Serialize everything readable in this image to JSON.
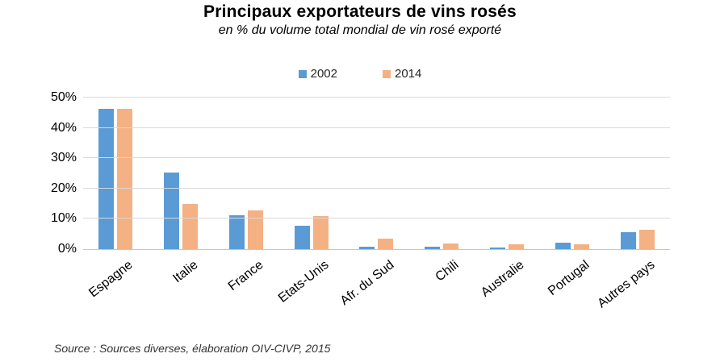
{
  "chart_data": {
    "type": "bar",
    "title": "Principaux exportateurs de vins rosés",
    "subtitle": "en % du volume total mondial de vin rosé exporté",
    "categories": [
      "Espagne",
      "Italie",
      "France",
      "Etats-Unis",
      "Afr. du Sud",
      "Chili",
      "Australie",
      "Portugal",
      "Autres pays"
    ],
    "series": [
      {
        "name": "2002",
        "color": "#5B9BD5",
        "values": [
          46.2,
          25.4,
          11.3,
          7.7,
          0.7,
          0.7,
          0.5,
          2.2,
          5.6
        ]
      },
      {
        "name": "2014",
        "color": "#F4B183",
        "values": [
          46.2,
          15.0,
          12.9,
          11.0,
          3.5,
          1.9,
          1.7,
          1.6,
          6.4
        ]
      }
    ],
    "xlabel": "",
    "ylabel": "",
    "ylim": [
      0,
      50
    ],
    "yticks": [
      "0%",
      "10%",
      "20%",
      "30%",
      "40%",
      "50%"
    ],
    "grid": true,
    "legend_position": "top",
    "source": "Source : Sources diverses, élaboration OIV-CIVP, 2015"
  }
}
